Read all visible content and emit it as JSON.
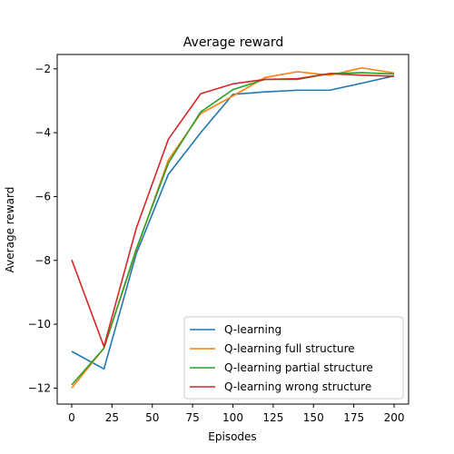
{
  "chart_data": {
    "type": "line",
    "title": "Average reward",
    "xlabel": "Episodes",
    "ylabel": "Average reward",
    "xlim": [
      -9,
      209
    ],
    "ylim": [
      -12.5,
      -1.55
    ],
    "xticks": [
      0,
      25,
      50,
      75,
      100,
      125,
      150,
      175,
      200
    ],
    "xtick_labels": [
      "0",
      "25",
      "50",
      "75",
      "100",
      "125",
      "150",
      "175",
      "200"
    ],
    "yticks": [
      -12,
      -10,
      -8,
      -6,
      -4,
      -2
    ],
    "ytick_labels": [
      "−12",
      "−10",
      "−8",
      "−6",
      "−4",
      "−2"
    ],
    "legend_position": "lower-right",
    "grid": false,
    "series": [
      {
        "name": "Q-learning",
        "color": "#1f77b4",
        "x": [
          0,
          20,
          40,
          60,
          80,
          100,
          120,
          140,
          160,
          180,
          200
        ],
        "y": [
          -10.85,
          -11.4,
          -7.8,
          -5.3,
          -4.0,
          -2.8,
          -2.72,
          -2.67,
          -2.67,
          -2.45,
          -2.22
        ]
      },
      {
        "name": "Q-learning full structure",
        "color": "#ff7f0e",
        "x": [
          0,
          20,
          40,
          60,
          80,
          100,
          120,
          140,
          160,
          180,
          200
        ],
        "y": [
          -12.0,
          -10.75,
          -7.7,
          -4.85,
          -3.4,
          -2.85,
          -2.27,
          -2.09,
          -2.2,
          -1.97,
          -2.13
        ]
      },
      {
        "name": "Q-learning partial structure",
        "color": "#2ca02c",
        "x": [
          0,
          20,
          40,
          60,
          80,
          100,
          120,
          140,
          160,
          180,
          200
        ],
        "y": [
          -11.9,
          -10.75,
          -7.65,
          -4.95,
          -3.35,
          -2.65,
          -2.33,
          -2.33,
          -2.15,
          -2.12,
          -2.16
        ]
      },
      {
        "name": "Q-learning wrong structure",
        "color": "#d62728",
        "x": [
          0,
          20,
          40,
          60,
          80,
          100,
          120,
          140,
          160,
          180,
          200
        ],
        "y": [
          -7.98,
          -10.7,
          -7.0,
          -4.2,
          -2.78,
          -2.47,
          -2.33,
          -2.31,
          -2.15,
          -2.2,
          -2.23
        ]
      }
    ]
  }
}
